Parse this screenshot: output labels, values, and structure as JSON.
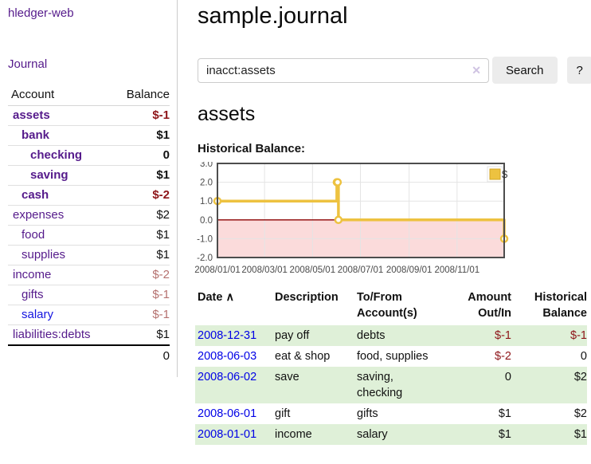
{
  "sidebar": {
    "brand": "hledger-web",
    "journal_link": "Journal",
    "accounts_table": {
      "header_account": "Account",
      "header_balance": "Balance",
      "rows": [
        {
          "name": "assets",
          "depth": 1,
          "bold": true,
          "balance": "$-1",
          "balance_style": "neg-strong",
          "link_color": "purple"
        },
        {
          "name": "bank",
          "depth": 2,
          "bold": true,
          "balance": "$1",
          "balance_style": "plain",
          "link_color": "purple"
        },
        {
          "name": "checking",
          "depth": 3,
          "bold": true,
          "balance": "0",
          "balance_style": "plain",
          "link_color": "purple"
        },
        {
          "name": "saving",
          "depth": 3,
          "bold": true,
          "balance": "$1",
          "balance_style": "plain",
          "link_color": "purple"
        },
        {
          "name": "cash",
          "depth": 2,
          "bold": true,
          "balance": "$-2",
          "balance_style": "neg-strong",
          "link_color": "purple"
        },
        {
          "name": "expenses",
          "depth": 1,
          "bold": false,
          "balance": "$2",
          "balance_style": "plain",
          "link_color": "purple"
        },
        {
          "name": "food",
          "depth": 2,
          "bold": false,
          "balance": "$1",
          "balance_style": "plain",
          "link_color": "purple"
        },
        {
          "name": "supplies",
          "depth": 2,
          "bold": false,
          "balance": "$1",
          "balance_style": "plain",
          "link_color": "purple"
        },
        {
          "name": "income",
          "depth": 1,
          "bold": false,
          "balance": "$-2",
          "balance_style": "neg-soft",
          "link_color": "purple"
        },
        {
          "name": "gifts",
          "depth": 2,
          "bold": false,
          "balance": "$-1",
          "balance_style": "neg-soft",
          "link_color": "purple"
        },
        {
          "name": "salary",
          "depth": 2,
          "bold": false,
          "balance": "$-1",
          "balance_style": "neg-soft",
          "link_color": "blue"
        },
        {
          "name": "liabilities:debts",
          "depth": 1,
          "bold": false,
          "balance": "$1",
          "balance_style": "plain",
          "link_color": "purple"
        }
      ],
      "total": "0"
    }
  },
  "main": {
    "title": "sample.journal",
    "search": {
      "value": "inacct:assets",
      "clear_icon": "✕",
      "button_label": "Search",
      "help_label": "?"
    },
    "account_heading": "assets",
    "chart_heading": "Historical Balance:",
    "register_table": {
      "headers": {
        "date": "Date",
        "sort_icon": "∧",
        "description": "Description",
        "accounts": "To/From Account(s)",
        "amount": "Amount Out/In",
        "balance": "Historical Balance"
      },
      "rows": [
        {
          "date": "2008-12-31",
          "description": "pay off",
          "accounts": "debts",
          "amount": "$-1",
          "amount_neg": true,
          "balance": "$-1",
          "balance_neg": true
        },
        {
          "date": "2008-06-03",
          "description": "eat & shop",
          "accounts": "food, supplies",
          "amount": "$-2",
          "amount_neg": true,
          "balance": "0",
          "balance_neg": false
        },
        {
          "date": "2008-06-02",
          "description": "save",
          "accounts": "saving,\nchecking",
          "amount": "0",
          "amount_neg": false,
          "balance": "$2",
          "balance_neg": false
        },
        {
          "date": "2008-06-01",
          "description": "gift",
          "accounts": "gifts",
          "amount": "$1",
          "amount_neg": false,
          "balance": "$2",
          "balance_neg": false
        },
        {
          "date": "2008-01-01",
          "description": "income",
          "accounts": "salary",
          "amount": "$1",
          "amount_neg": false,
          "balance": "$1",
          "balance_neg": false
        }
      ]
    }
  },
  "chart_data": {
    "type": "line",
    "title": "Historical Balance:",
    "series": [
      {
        "name": "$",
        "color": "#edc240",
        "steps": true,
        "points": [
          [
            "2008-01-01",
            1
          ],
          [
            "2008-06-01",
            2
          ],
          [
            "2008-06-02",
            2
          ],
          [
            "2008-06-03",
            0
          ],
          [
            "2008-12-31",
            -1
          ]
        ]
      }
    ],
    "ylim": [
      -2,
      3
    ],
    "yticks": [
      {
        "v": 3,
        "label": "3.0"
      },
      {
        "v": 2,
        "label": "2.0"
      },
      {
        "v": 1,
        "label": "1.0"
      },
      {
        "v": 0,
        "label": "0.0"
      },
      {
        "v": -1,
        "label": "-1.0"
      },
      {
        "v": -2,
        "label": "-2.0"
      }
    ],
    "xticks": [
      "2008/01/01",
      "2008/03/01",
      "2008/05/01",
      "2008/07/01",
      "2008/09/01",
      "2008/11/01"
    ],
    "xrange": [
      "2008-01-01",
      "2008-12-31"
    ],
    "grid": true,
    "negative_region_color": "#fbdbdb",
    "zero_line_color": "#8b0000",
    "legend": {
      "position": "top-right",
      "label": "$"
    }
  },
  "colors": {
    "link_purple": "#551a8b",
    "link_blue": "#0000e6",
    "negative_strong": "#8e1519",
    "negative_soft": "#b5716f",
    "row_green": "#dff0d8",
    "button_bg": "#ececec",
    "chart_line": "#edc240",
    "chart_negative_fill": "#fbdbdb",
    "chart_zero_line": "#8b0000"
  }
}
